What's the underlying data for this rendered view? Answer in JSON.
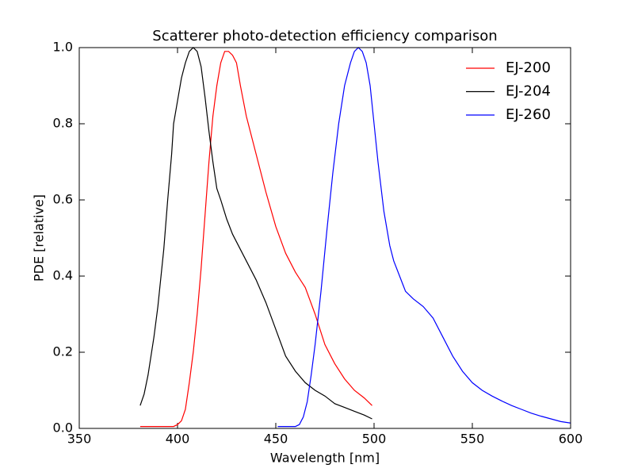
{
  "chart_data": {
    "type": "line",
    "title": "Scatterer photo-detection efficiency comparison",
    "xlabel": "Wavelength [nm]",
    "ylabel": "PDE [relative]",
    "xlim": [
      350,
      600
    ],
    "ylim": [
      0,
      1
    ],
    "xticks": [
      350,
      400,
      450,
      500,
      550,
      600
    ],
    "yticks": [
      {
        "value": 0,
        "label": "0.0"
      },
      0.2,
      0.4,
      0.6,
      0.8,
      {
        "value": 1,
        "label": "1.0"
      }
    ],
    "grid": false,
    "legend": "upper right",
    "series": [
      {
        "name": "EJ-200",
        "color": "#ff0000",
        "x": [
          381,
          398,
          400,
          402,
          404,
          406,
          408,
          410,
          412,
          414,
          416,
          418,
          420,
          422,
          424,
          426,
          428,
          430,
          432,
          435,
          440,
          445,
          450,
          455,
          460,
          465,
          470,
          475,
          480,
          485,
          490,
          495,
          499
        ],
        "values": [
          0.005,
          0.005,
          0.01,
          0.02,
          0.05,
          0.12,
          0.2,
          0.3,
          0.42,
          0.56,
          0.7,
          0.82,
          0.9,
          0.96,
          0.99,
          0.99,
          0.98,
          0.96,
          0.9,
          0.82,
          0.72,
          0.62,
          0.53,
          0.46,
          0.41,
          0.37,
          0.3,
          0.22,
          0.17,
          0.13,
          0.1,
          0.08,
          0.06
        ]
      },
      {
        "name": "EJ-204",
        "color": "#000000",
        "x": [
          381,
          383,
          385,
          388,
          390,
          393,
          395,
          397,
          398,
          400,
          402,
          404,
          406,
          408,
          410,
          412,
          414,
          416,
          418,
          420,
          422,
          425,
          428,
          430,
          435,
          440,
          445,
          450,
          455,
          460,
          465,
          470,
          475,
          480,
          485,
          490,
          495,
          499
        ],
        "values": [
          0.06,
          0.09,
          0.14,
          0.24,
          0.32,
          0.47,
          0.6,
          0.72,
          0.8,
          0.86,
          0.92,
          0.96,
          0.99,
          1.0,
          0.99,
          0.95,
          0.87,
          0.78,
          0.7,
          0.63,
          0.6,
          0.55,
          0.51,
          0.49,
          0.44,
          0.39,
          0.33,
          0.26,
          0.19,
          0.15,
          0.12,
          0.1,
          0.085,
          0.065,
          0.055,
          0.045,
          0.035,
          0.025
        ]
      },
      {
        "name": "EJ-260",
        "color": "#0000ff",
        "x": [
          451,
          460,
          462,
          464,
          466,
          468,
          470,
          473,
          476,
          479,
          482,
          485,
          488,
          490,
          492,
          494,
          496,
          498,
          500,
          502,
          505,
          508,
          510,
          513,
          516,
          520,
          525,
          530,
          535,
          540,
          545,
          550,
          555,
          560,
          565,
          570,
          575,
          580,
          585,
          590,
          595,
          600
        ],
        "values": [
          0.005,
          0.005,
          0.01,
          0.03,
          0.07,
          0.14,
          0.22,
          0.36,
          0.52,
          0.67,
          0.8,
          0.9,
          0.96,
          0.99,
          1.0,
          0.99,
          0.96,
          0.9,
          0.8,
          0.7,
          0.57,
          0.48,
          0.44,
          0.4,
          0.36,
          0.34,
          0.32,
          0.29,
          0.24,
          0.19,
          0.15,
          0.12,
          0.1,
          0.085,
          0.072,
          0.06,
          0.05,
          0.04,
          0.032,
          0.025,
          0.018,
          0.014
        ]
      }
    ]
  }
}
